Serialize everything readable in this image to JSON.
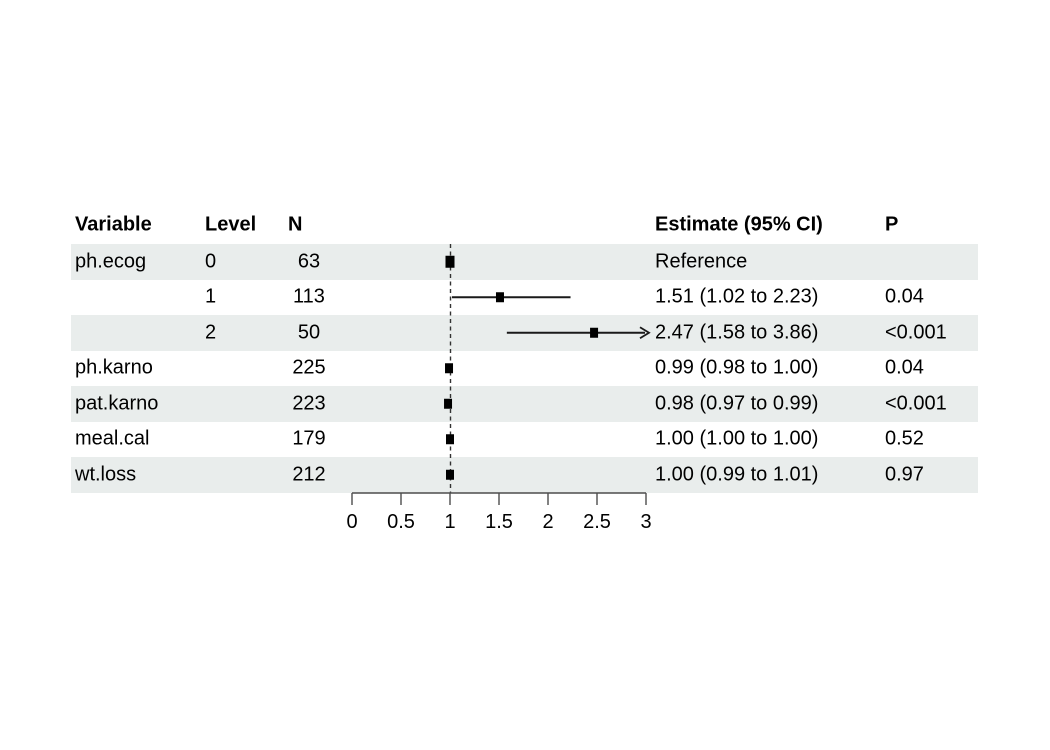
{
  "table": {
    "headers": {
      "variable": "Variable",
      "level": "Level",
      "n": "N",
      "estimate": "Estimate (95% CI)",
      "p": "P"
    },
    "rows": [
      {
        "variable": "ph.ecog",
        "level": "0",
        "n": "63",
        "estimate_label": "Reference",
        "p": ""
      },
      {
        "variable": "",
        "level": "1",
        "n": "113",
        "estimate_label": "1.51 (1.02 to 2.23)",
        "p": "0.04"
      },
      {
        "variable": "",
        "level": "2",
        "n": "50",
        "estimate_label": "2.47 (1.58 to 3.86)",
        "p": "<0.001"
      },
      {
        "variable": "ph.karno",
        "level": "",
        "n": "225",
        "estimate_label": "0.99 (0.98 to 1.00)",
        "p": "0.04"
      },
      {
        "variable": "pat.karno",
        "level": "",
        "n": "223",
        "estimate_label": "0.98 (0.97 to 0.99)",
        "p": "<0.001"
      },
      {
        "variable": "meal.cal",
        "level": "",
        "n": "179",
        "estimate_label": "1.00 (1.00 to 1.00)",
        "p": "0.52"
      },
      {
        "variable": "wt.loss",
        "level": "",
        "n": "212",
        "estimate_label": "1.00 (0.99 to 1.01)",
        "p": "0.97"
      }
    ]
  },
  "chart_data": {
    "type": "forest",
    "xlim": [
      0,
      3
    ],
    "reference_line": 1,
    "ticks": [
      {
        "v": 0,
        "label": "0"
      },
      {
        "v": 0.5,
        "label": "0.5"
      },
      {
        "v": 1,
        "label": "1"
      },
      {
        "v": 1.5,
        "label": "1.5"
      },
      {
        "v": 2,
        "label": "2"
      },
      {
        "v": 2.5,
        "label": "2.5"
      },
      {
        "v": 3,
        "label": "3"
      }
    ],
    "points": [
      {
        "estimate": 1.0,
        "low": null,
        "high": null,
        "reference": true,
        "clipped_high": false
      },
      {
        "estimate": 1.51,
        "low": 1.02,
        "high": 2.23,
        "reference": false,
        "clipped_high": false
      },
      {
        "estimate": 2.47,
        "low": 1.58,
        "high": 3.86,
        "reference": false,
        "clipped_high": true
      },
      {
        "estimate": 0.99,
        "low": 0.98,
        "high": 1.0,
        "reference": false,
        "clipped_high": false
      },
      {
        "estimate": 0.98,
        "low": 0.97,
        "high": 0.99,
        "reference": false,
        "clipped_high": false
      },
      {
        "estimate": 1.0,
        "low": 1.0,
        "high": 1.0,
        "reference": false,
        "clipped_high": false
      },
      {
        "estimate": 1.0,
        "low": 0.99,
        "high": 1.01,
        "reference": false,
        "clipped_high": false
      }
    ]
  },
  "colors": {
    "stripe": "#e9edec",
    "marker": "#000000",
    "ci_line": "#1a1a1a",
    "reference_dash": "#333333",
    "axis": "#4d4d4d",
    "tick_label": "#000000"
  }
}
